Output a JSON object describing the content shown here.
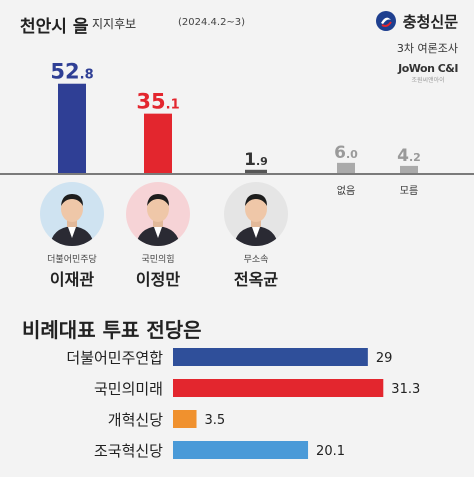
{
  "header": {
    "title": "천안시 을",
    "subtitle": "지지후보",
    "date": "(2024.4.2~3)",
    "brand": "충청신문",
    "survey": "3차 여론조사",
    "pollster": "JoWon C&I",
    "pollster_sub": "조원씨앤아이"
  },
  "chart_data": [
    {
      "type": "bar",
      "title": "천안시 을 지지후보",
      "categories": [
        "이재관",
        "이정만",
        "전옥균",
        "없음",
        "모름"
      ],
      "parties": [
        "더불어민주당",
        "국민의힘",
        "무소속",
        "",
        ""
      ],
      "values": [
        52.8,
        35.1,
        1.9,
        6.0,
        4.2
      ],
      "value_labels": [
        {
          "int": "52",
          "dec": ".8"
        },
        {
          "int": "35",
          "dec": ".1"
        },
        {
          "int": "1",
          "dec": ".9"
        },
        {
          "int": "6",
          "dec": ".0"
        },
        {
          "int": "4",
          "dec": ".2"
        }
      ],
      "colors": [
        "#2f3f95",
        "#e3262e",
        "#555555",
        "#aaaaaa",
        "#aaaaaa"
      ],
      "label_colors": [
        "#2f3f95",
        "#e3262e",
        "#333333",
        "#9a9a9a",
        "#9a9a9a"
      ],
      "photo_bg": [
        "#cfe3f1",
        "#f6d3d6",
        "#e5e5e5"
      ],
      "ylim": [
        0,
        55
      ],
      "xlabel": "",
      "ylabel": ""
    },
    {
      "type": "bar",
      "orientation": "horizontal",
      "title": "비례대표 투표 전당은",
      "categories": [
        "더불어민주연합",
        "국민의미래",
        "개혁신당",
        "조국혁신당"
      ],
      "values": [
        29,
        31.3,
        3.5,
        20.1
      ],
      "value_labels": [
        "29",
        "31.3",
        "3.5",
        "20.1"
      ],
      "colors": [
        "#2f4f9a",
        "#e3262e",
        "#f0912e",
        "#4a9ad8"
      ],
      "xlim": [
        0,
        32
      ],
      "xlabel": "",
      "ylabel": ""
    }
  ]
}
